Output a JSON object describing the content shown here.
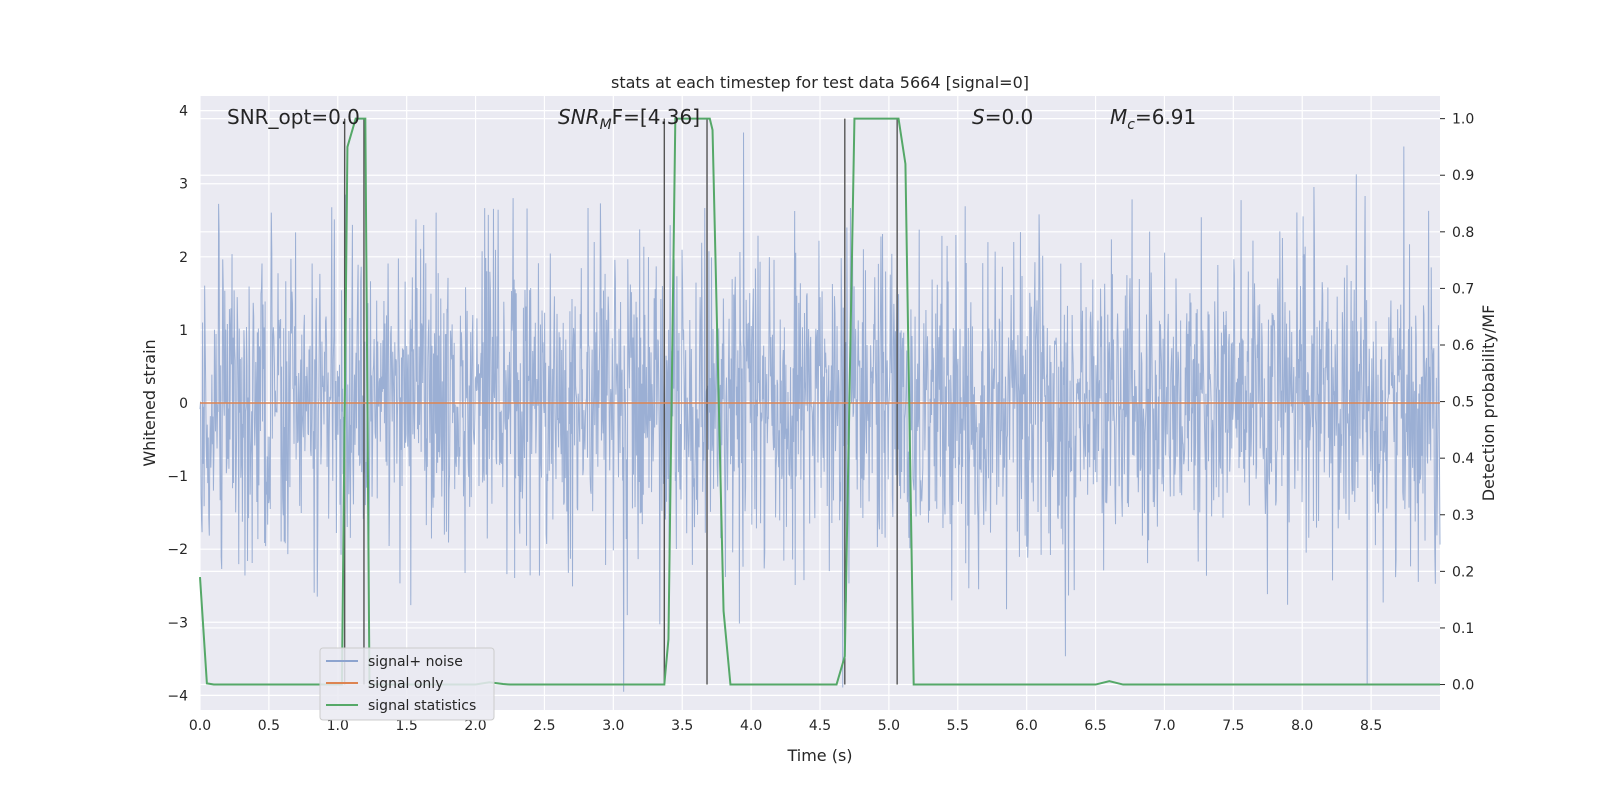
{
  "chart_data": {
    "type": "line",
    "title": "stats at each timestep for test data 5664 [signal=0]",
    "xlabel": "Time (s)",
    "ylabel": "Whitened strain",
    "ylabel_right": "Detection probability/MF",
    "xlim": [
      0,
      9
    ],
    "ylim": [
      -4.2,
      4.2
    ],
    "ylim_right": [
      -0.045,
      1.04
    ],
    "x_ticks": [
      "0.0",
      "0.5",
      "1.0",
      "1.5",
      "2.0",
      "2.5",
      "3.0",
      "3.5",
      "4.0",
      "4.5",
      "5.0",
      "5.5",
      "6.0",
      "6.5",
      "7.0",
      "7.5",
      "8.0",
      "8.5"
    ],
    "y_ticks": [
      "4",
      "3",
      "2",
      "1",
      "0",
      "−1",
      "−2",
      "−3",
      "−4"
    ],
    "y_ticks_right": [
      "1.0",
      "0.9",
      "0.8",
      "0.7",
      "0.6",
      "0.5",
      "0.4",
      "0.3",
      "0.2",
      "0.1",
      "0.0"
    ],
    "grid": true,
    "legend_position": "lower-left",
    "annotations": {
      "snr_opt": "SNR_opt=0.0",
      "snr_mf_main": "SNR",
      "snr_mf_sub": "M",
      "snr_mf_rest": "F=[4.36]",
      "s_main": "S",
      "s_rest": "=0.0",
      "mc_main": "M",
      "mc_sub": "c",
      "mc_rest": "=6.91"
    },
    "series": [
      {
        "name": "signal+ noise",
        "color": "#8da4cf",
        "description_values": "dense whitened noise, mostly within ±2 with spikes to about ±3.7",
        "values": []
      },
      {
        "name": "signal only",
        "color": "#dd8452",
        "x": [
          0,
          9
        ],
        "values": [
          0,
          0
        ]
      },
      {
        "name": "signal statistics",
        "color": "#55a868",
        "x": [
          0,
          0.05,
          0.1,
          1.0,
          1.03,
          1.07,
          1.13,
          1.2,
          1.23,
          1.28,
          1.5,
          2.0,
          2.1,
          2.2,
          2.25,
          3.37,
          3.4,
          3.45,
          3.7,
          3.72,
          3.8,
          3.85,
          4.0,
          4.62,
          4.68,
          4.75,
          5.07,
          5.12,
          5.18,
          5.22,
          5.3,
          6.5,
          6.6,
          6.7,
          6.8,
          9.0
        ],
        "values": [
          0.19,
          0.002,
          0.0,
          0.0,
          0.0,
          0.95,
          1.0,
          1.0,
          0.0,
          0.0,
          0.0,
          0.0,
          0.004,
          0.001,
          0.0,
          0.0,
          0.08,
          1.0,
          1.0,
          0.98,
          0.13,
          0.0,
          0.0,
          0.0,
          0.05,
          1.0,
          1.0,
          0.92,
          0.0,
          0.0,
          0.0,
          0.0,
          0.006,
          0.0,
          0.0,
          0.0
        ]
      }
    ],
    "vertical_lines": [
      1.05,
      1.19,
      3.37,
      3.68,
      4.68,
      5.06
    ]
  },
  "legend": {
    "items": [
      "signal+ noise",
      "signal only",
      "signal statistics"
    ]
  },
  "colors": {
    "axes_bg": "#eaeaf2",
    "grid": "#ffffff",
    "noise": "#8da4cf",
    "signal": "#dd8452",
    "stats": "#55a868",
    "vline": "#555555"
  }
}
